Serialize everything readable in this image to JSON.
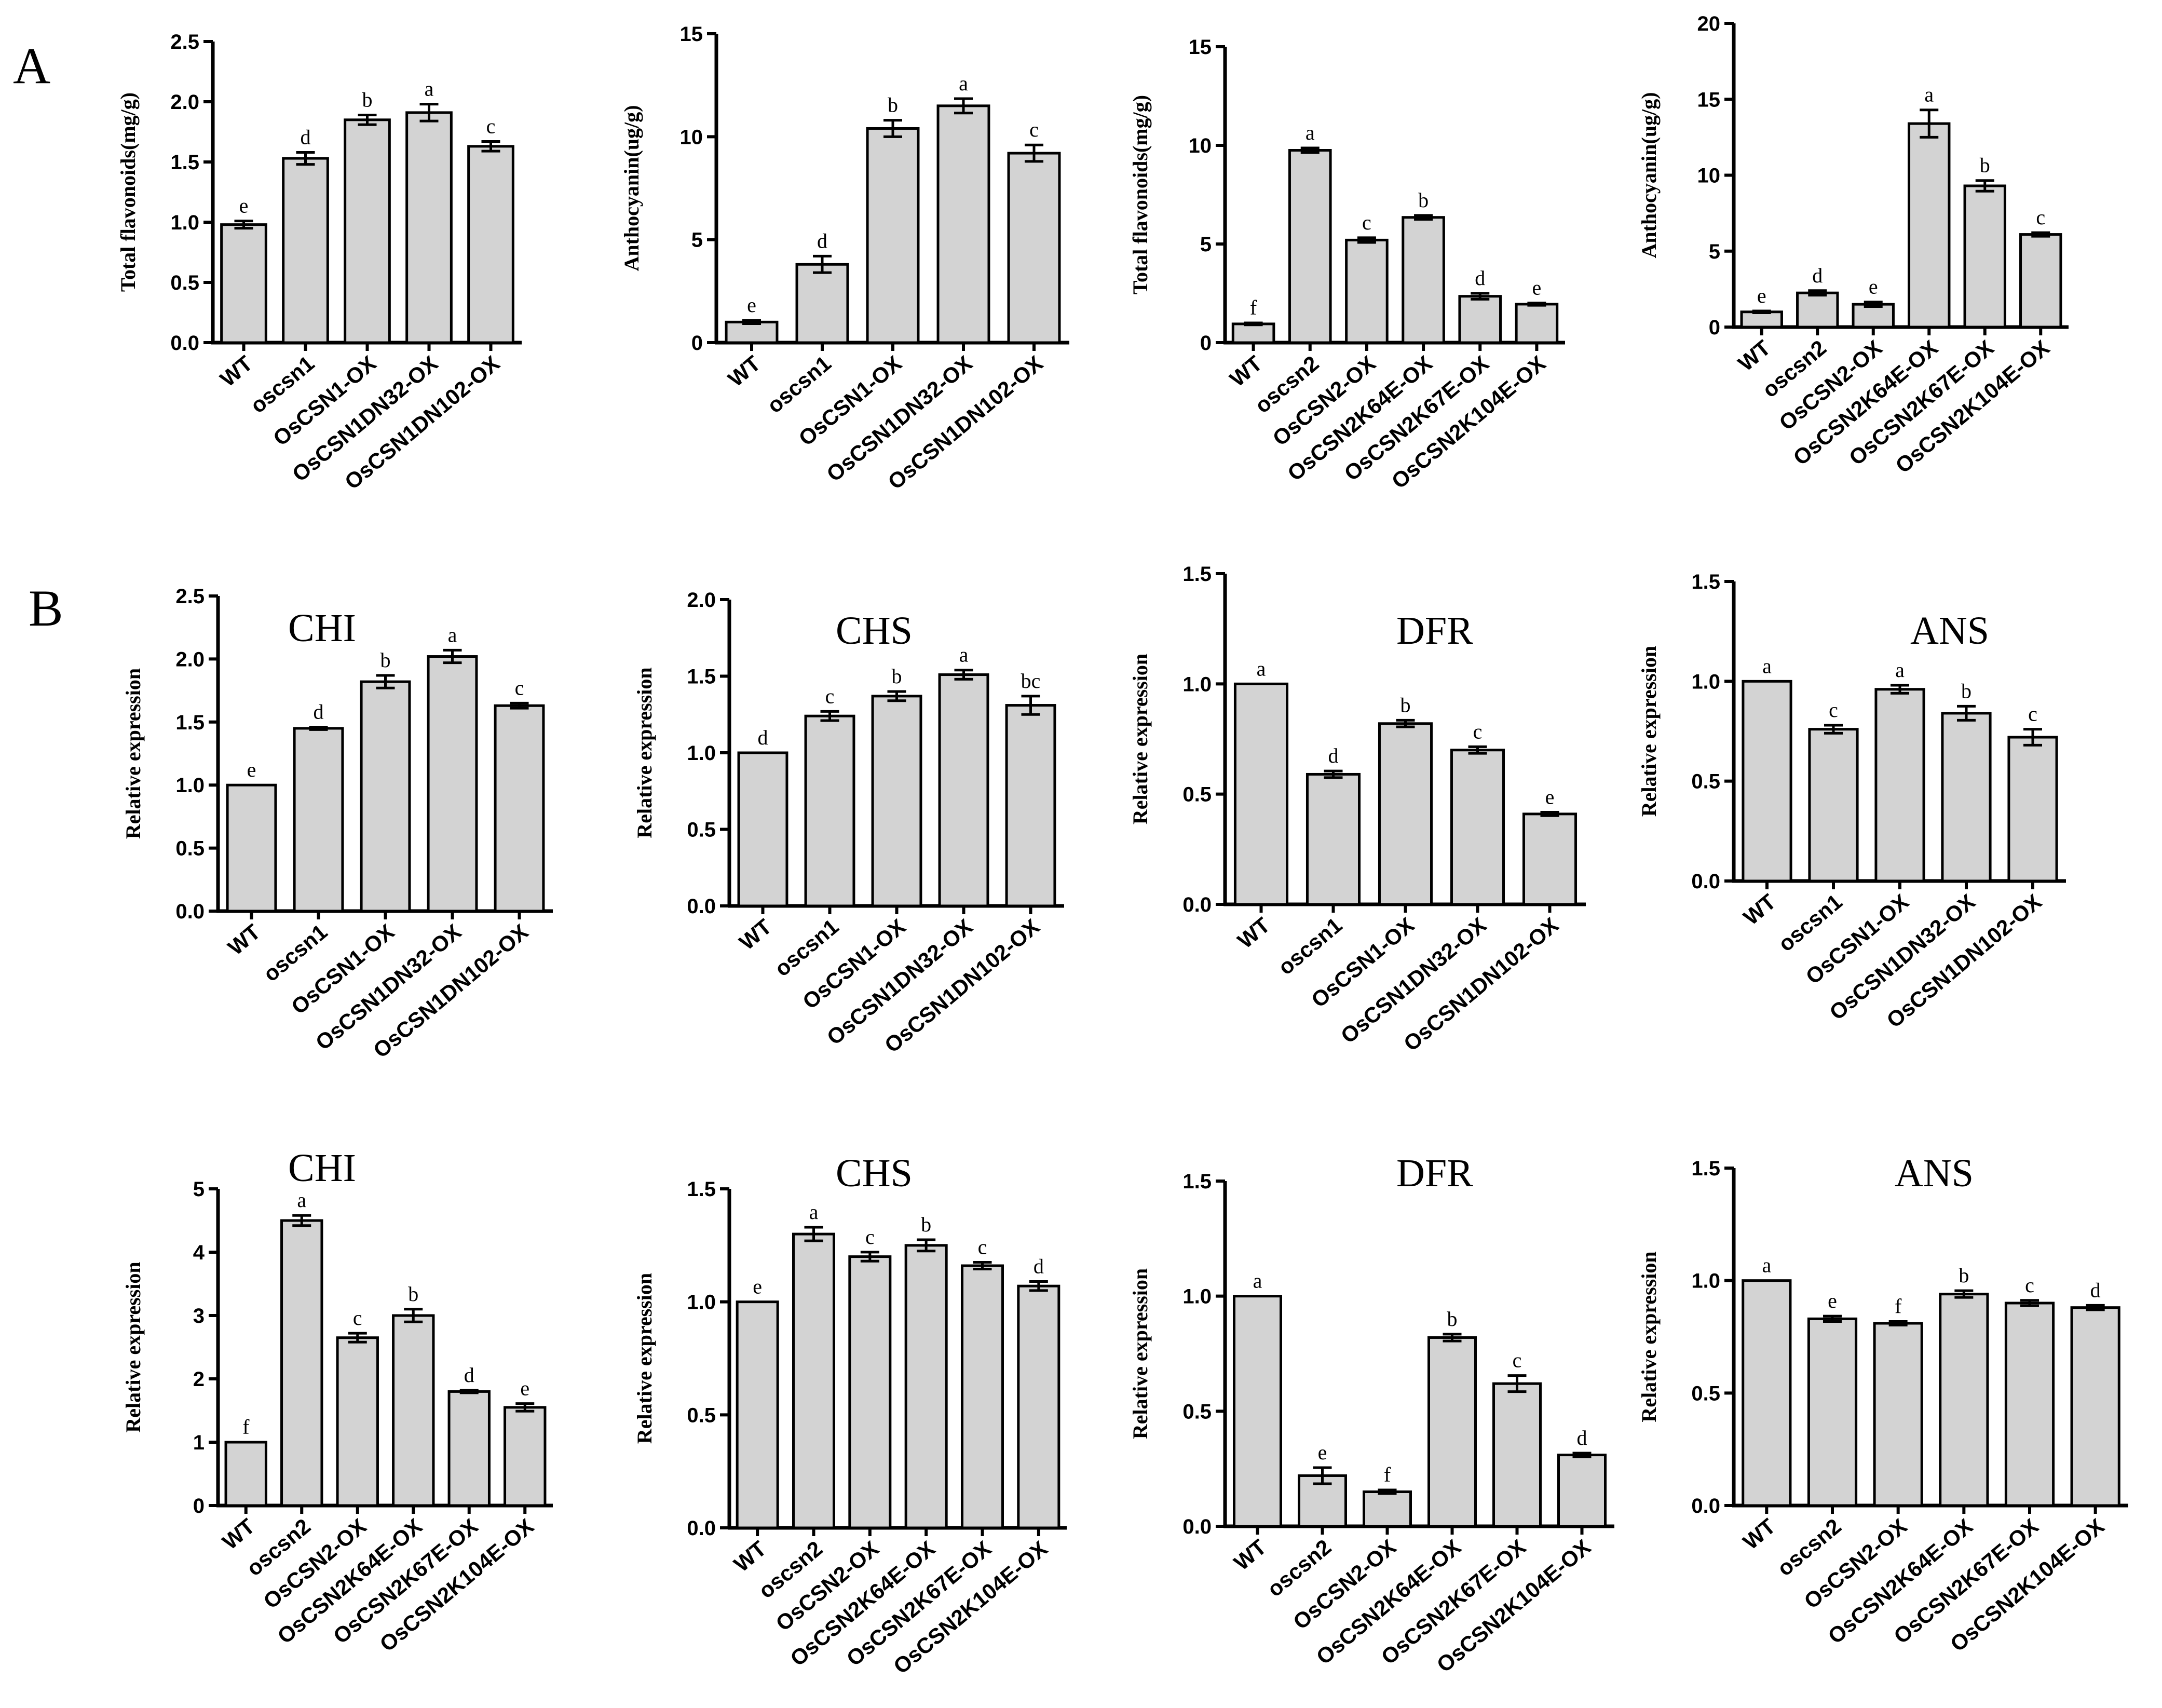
{
  "panel_labels": [
    "A",
    "B"
  ],
  "chart_data": [
    {
      "type": "bar",
      "title": "",
      "ylabel": "Total flavonoids(mg/g)",
      "ylim": [
        0,
        2.5
      ],
      "yticks": [
        "0.0",
        "0.5",
        "1.0",
        "1.5",
        "2.0",
        "2.5"
      ],
      "categories": [
        "WT",
        "oscsn1",
        "OsCSN1-OX",
        "OsCSN1DN32-OX",
        "OsCSN1DN102-OX"
      ],
      "values": [
        0.98,
        1.53,
        1.85,
        1.91,
        1.63
      ],
      "errors": [
        0.03,
        0.05,
        0.04,
        0.07,
        0.04
      ],
      "letters": [
        "e",
        "d",
        "b",
        "a",
        "c"
      ]
    },
    {
      "type": "bar",
      "title": "",
      "ylabel": "Anthocyanin(ug/g)",
      "ylim": [
        0,
        15
      ],
      "yticks": [
        "0",
        "5",
        "10",
        "15"
      ],
      "categories": [
        "WT",
        "oscsn1",
        "OsCSN1-OX",
        "OsCSN1DN32-OX",
        "OsCSN1DN102-OX"
      ],
      "values": [
        1.0,
        3.8,
        10.4,
        11.5,
        9.2
      ],
      "errors": [
        0.08,
        0.4,
        0.4,
        0.35,
        0.4
      ],
      "letters": [
        "e",
        "d",
        "b",
        "a",
        "c"
      ]
    },
    {
      "type": "bar",
      "title": "",
      "ylabel": "Total flavonoids(mg/g)",
      "ylim": [
        0,
        15
      ],
      "yticks": [
        "0",
        "5",
        "10",
        "15"
      ],
      "categories": [
        "WT",
        "oscsn2",
        "OsCSN2-OX",
        "OsCSN2K64E-OX",
        "OsCSN2K67E-OX",
        "OsCSN2K104E-OX"
      ],
      "values": [
        0.95,
        9.75,
        5.2,
        6.35,
        2.35,
        1.95
      ],
      "errors": [
        0.05,
        0.12,
        0.12,
        0.1,
        0.15,
        0.06
      ],
      "letters": [
        "f",
        "a",
        "c",
        "b",
        "d",
        "e"
      ]
    },
    {
      "type": "bar",
      "title": "",
      "ylabel": "Anthocyanin(ug/g)",
      "ylim": [
        0,
        20
      ],
      "yticks": [
        "0",
        "5",
        "10",
        "15",
        "20"
      ],
      "categories": [
        "WT",
        "oscsn2",
        "OsCSN2-OX",
        "OsCSN2K64E-OX",
        "OsCSN2K67E-OX",
        "OsCSN2K104E-OX"
      ],
      "values": [
        1.0,
        2.25,
        1.5,
        13.4,
        9.3,
        6.1
      ],
      "errors": [
        0.06,
        0.15,
        0.15,
        0.9,
        0.35,
        0.12
      ],
      "letters": [
        "e",
        "d",
        "e",
        "a",
        "b",
        "c"
      ]
    },
    {
      "type": "bar",
      "title": "CHI",
      "ylabel": "Relative expression",
      "ylim": [
        0,
        2.5
      ],
      "yticks": [
        "0.0",
        "0.5",
        "1.0",
        "1.5",
        "2.0",
        "2.5"
      ],
      "categories": [
        "WT",
        "oscsn1",
        "OsCSN1-OX",
        "OsCSN1DN32-OX",
        "OsCSN1DN102-OX"
      ],
      "values": [
        1.0,
        1.45,
        1.82,
        2.02,
        1.63
      ],
      "errors": [
        0,
        0.01,
        0.05,
        0.05,
        0.02
      ],
      "letters": [
        "e",
        "d",
        "b",
        "a",
        "c"
      ]
    },
    {
      "type": "bar",
      "title": "CHS",
      "ylabel": "Relative expression",
      "ylim": [
        0,
        2.0
      ],
      "yticks": [
        "0.0",
        "0.5",
        "1.0",
        "1.5",
        "2.0"
      ],
      "categories": [
        "WT",
        "oscsn1",
        "OsCSN1-OX",
        "OsCSN1DN32-OX",
        "OsCSN1DN102-OX"
      ],
      "values": [
        1.0,
        1.24,
        1.37,
        1.51,
        1.31
      ],
      "errors": [
        0,
        0.03,
        0.03,
        0.03,
        0.06
      ],
      "letters": [
        "d",
        "c",
        "b",
        "a",
        "bc"
      ]
    },
    {
      "type": "bar",
      "title": "DFR",
      "ylabel": "Relative expression",
      "ylim": [
        0,
        1.5
      ],
      "yticks": [
        "0.0",
        "0.5",
        "1.0",
        "1.5"
      ],
      "categories": [
        "WT",
        "oscsn1",
        "OsCSN1-OX",
        "OsCSN1DN32-OX",
        "OsCSN1DN102-OX"
      ],
      "values": [
        1.0,
        0.59,
        0.82,
        0.7,
        0.41
      ],
      "errors": [
        0,
        0.015,
        0.015,
        0.015,
        0.008
      ],
      "letters": [
        "a",
        "d",
        "b",
        "c",
        "e"
      ]
    },
    {
      "type": "bar",
      "title": "ANS",
      "ylabel": "Relative expression",
      "ylim": [
        0,
        1.5
      ],
      "yticks": [
        "0.0",
        "0.5",
        "1.0",
        "1.5"
      ],
      "categories": [
        "WT",
        "oscsn1",
        "OsCSN1-OX",
        "OsCSN1DN32-OX",
        "OsCSN1DN102-OX"
      ],
      "values": [
        1.0,
        0.76,
        0.96,
        0.84,
        0.72
      ],
      "errors": [
        0,
        0.02,
        0.02,
        0.035,
        0.04
      ],
      "letters": [
        "a",
        "c",
        "a",
        "b",
        "c"
      ]
    },
    {
      "type": "bar",
      "title": "CHI",
      "ylabel": "Relative expression",
      "ylim": [
        0,
        5
      ],
      "yticks": [
        "0",
        "1",
        "2",
        "3",
        "4",
        "5"
      ],
      "categories": [
        "WT",
        "oscsn2",
        "OsCSN2-OX",
        "OsCSN2K64E-OX",
        "OsCSN2K67E-OX",
        "OsCSN2K104E-OX"
      ],
      "values": [
        1.0,
        4.5,
        2.65,
        3.0,
        1.8,
        1.55
      ],
      "errors": [
        0,
        0.08,
        0.07,
        0.1,
        0.02,
        0.06
      ],
      "letters": [
        "f",
        "a",
        "c",
        "b",
        "d",
        "e"
      ]
    },
    {
      "type": "bar",
      "title": "CHS",
      "ylabel": "Relative expression",
      "ylim": [
        0,
        1.5
      ],
      "yticks": [
        "0.0",
        "0.5",
        "1.0",
        "1.5"
      ],
      "categories": [
        "WT",
        "oscsn2",
        "OsCSN2-OX",
        "OsCSN2K64E-OX",
        "OsCSN2K67E-OX",
        "OsCSN2K104E-OX"
      ],
      "values": [
        1.0,
        1.3,
        1.2,
        1.25,
        1.16,
        1.07
      ],
      "errors": [
        0,
        0.03,
        0.02,
        0.025,
        0.015,
        0.02
      ],
      "letters": [
        "e",
        "a",
        "c",
        "b",
        "c",
        "d"
      ]
    },
    {
      "type": "bar",
      "title": "DFR",
      "ylabel": "Relative expression",
      "ylim": [
        0,
        1.5
      ],
      "yticks": [
        "0.0",
        "0.5",
        "1.0",
        "1.5"
      ],
      "categories": [
        "WT",
        "oscsn2",
        "OsCSN2-OX",
        "OsCSN2K64E-OX",
        "OsCSN2K67E-OX",
        "OsCSN2K104E-OX"
      ],
      "values": [
        1.0,
        0.22,
        0.15,
        0.82,
        0.62,
        0.31
      ],
      "errors": [
        0,
        0.035,
        0.008,
        0.015,
        0.035,
        0.008
      ],
      "letters": [
        "a",
        "e",
        "f",
        "b",
        "c",
        "d"
      ]
    },
    {
      "type": "bar",
      "title": "ANS",
      "ylabel": "Relative expression",
      "ylim": [
        0,
        1.5
      ],
      "yticks": [
        "0.0",
        "0.5",
        "1.0",
        "1.5"
      ],
      "categories": [
        "WT",
        "oscsn2",
        "OsCSN2-OX",
        "OsCSN2K64E-OX",
        "OsCSN2K67E-OX",
        "OsCSN2K104E-OX"
      ],
      "values": [
        1.0,
        0.83,
        0.81,
        0.94,
        0.9,
        0.88
      ],
      "errors": [
        0,
        0.012,
        0.008,
        0.015,
        0.012,
        0.01
      ],
      "letters": [
        "a",
        "e",
        "f",
        "b",
        "c",
        "d"
      ]
    }
  ]
}
